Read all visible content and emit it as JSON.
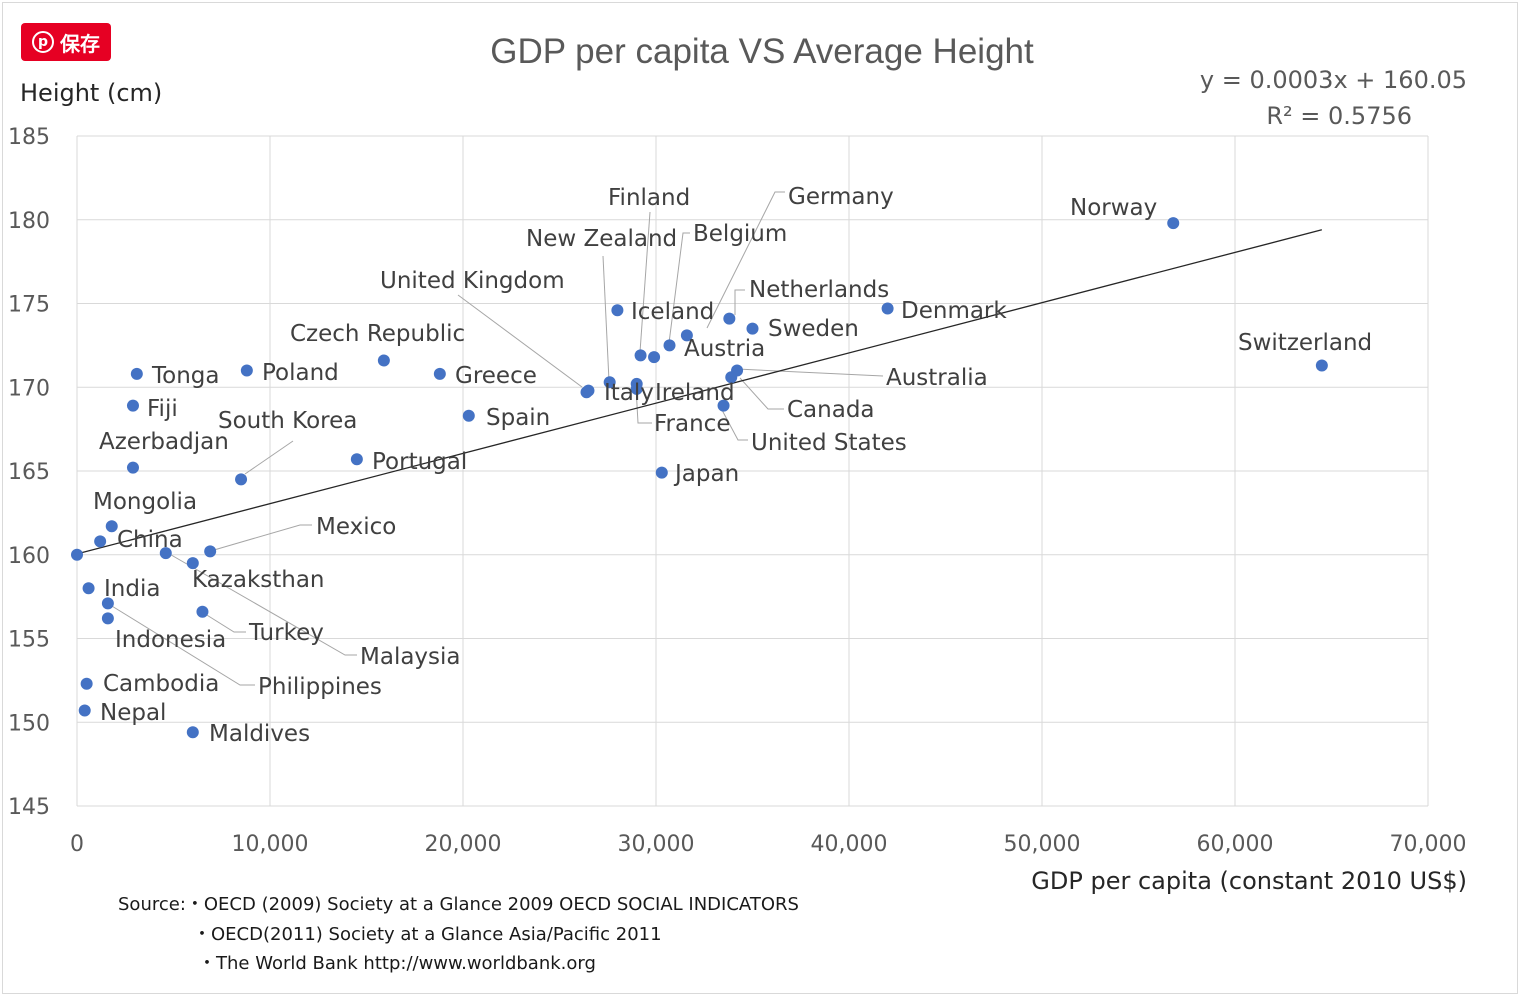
{
  "save_button": {
    "label": "保存",
    "icon": "pinterest-icon"
  },
  "chart_data": {
    "type": "scatter",
    "title": "GDP per capita VS Average Height",
    "xlabel": "GDP per capita (constant 2010 US$)",
    "ylabel": "Height (cm)",
    "xlim": [
      0,
      70000
    ],
    "ylim": [
      145,
      185
    ],
    "x_ticks": [
      0,
      10000,
      20000,
      30000,
      40000,
      50000,
      60000,
      70000
    ],
    "x_tick_labels": [
      "0",
      "10,000",
      "20,000",
      "30,000",
      "40,000",
      "50,000",
      "60,000",
      "70,000"
    ],
    "y_ticks": [
      145,
      150,
      155,
      160,
      165,
      170,
      175,
      180,
      185
    ],
    "y_tick_labels": [
      "145",
      "150",
      "155",
      "160",
      "165",
      "170",
      "175",
      "180",
      "185"
    ],
    "grid": true,
    "trendline": {
      "slope": 0.0003,
      "intercept": 160.05,
      "x_end": 64500
    },
    "equation": "y = 0.0003x + 160.05",
    "r_squared": "R² = 0.5756",
    "points": [
      {
        "label": "Norway",
        "x": 56800,
        "y": 179.8
      },
      {
        "label": "Switzerland",
        "x": 64500,
        "y": 171.3
      },
      {
        "label": "Denmark",
        "x": 42000,
        "y": 174.7
      },
      {
        "label": "Sweden",
        "x": 35000,
        "y": 173.5
      },
      {
        "label": "Netherlands",
        "x": 33800,
        "y": 174.1
      },
      {
        "label": "Germany",
        "x": 31600,
        "y": 173.1
      },
      {
        "label": "Belgium",
        "x": 30700,
        "y": 172.5
      },
      {
        "label": "Austria",
        "x": 29900,
        "y": 171.8
      },
      {
        "label": "Finland",
        "x": 29200,
        "y": 171.9
      },
      {
        "label": "Iceland",
        "x": 28000,
        "y": 174.6
      },
      {
        "label": "New Zealand",
        "x": 27600,
        "y": 170.3
      },
      {
        "label": "United Kingdom",
        "x": 26400,
        "y": 169.7
      },
      {
        "label": "Italy",
        "x": 26500,
        "y": 169.8
      },
      {
        "label": "Ireland",
        "x": 29000,
        "y": 170.2
      },
      {
        "label": "France",
        "x": 29000,
        "y": 169.9
      },
      {
        "label": "Australia",
        "x": 34200,
        "y": 171.0
      },
      {
        "label": "Canada",
        "x": 33900,
        "y": 170.6
      },
      {
        "label": "United States",
        "x": 33500,
        "y": 168.9
      },
      {
        "label": "Japan",
        "x": 30300,
        "y": 164.9
      },
      {
        "label": "Czech Republic",
        "x": 15900,
        "y": 171.6
      },
      {
        "label": "Greece",
        "x": 18800,
        "y": 170.8
      },
      {
        "label": "Spain",
        "x": 20300,
        "y": 168.3
      },
      {
        "label": "Portugal",
        "x": 14500,
        "y": 165.7
      },
      {
        "label": "Poland",
        "x": 8800,
        "y": 171.0
      },
      {
        "label": "Tonga",
        "x": 3100,
        "y": 170.8
      },
      {
        "label": "Fiji",
        "x": 2900,
        "y": 168.9
      },
      {
        "label": "South Korea",
        "x": 8500,
        "y": 164.5
      },
      {
        "label": "Azerbadjan",
        "x": 2900,
        "y": 165.2
      },
      {
        "label": "Mongolia",
        "x": 1800,
        "y": 161.7
      },
      {
        "label": "China",
        "x": 1200,
        "y": 160.8
      },
      {
        "label": "Mexico",
        "x": 6900,
        "y": 160.2
      },
      {
        "label": "Malaysia",
        "x": 4600,
        "y": 160.1
      },
      {
        "label": "Kazaksthan",
        "x": 6000,
        "y": 159.5
      },
      {
        "label": "India",
        "x": 600,
        "y": 158.0
      },
      {
        "label": "Philippines",
        "x": 1600,
        "y": 157.1
      },
      {
        "label": "Indonesia",
        "x": 1600,
        "y": 156.2
      },
      {
        "label": "Turkey",
        "x": 6500,
        "y": 156.6
      },
      {
        "label": "Cambodia",
        "x": 500,
        "y": 152.3
      },
      {
        "label": "Nepal",
        "x": 400,
        "y": 150.7
      },
      {
        "label": "Maldives",
        "x": 6000,
        "y": 149.4
      },
      {
        "label": "",
        "x": 0,
        "y": 160.0
      }
    ],
    "source_lines": [
      "Source:・OECD (2009)  Society at a Glance 2009  OECD SOCIAL INDICATORS",
      "・OECD(2011) Society at a Glance Asia/Pacific 2011",
      "・The World Bank  http://www.worldbank.org"
    ]
  }
}
